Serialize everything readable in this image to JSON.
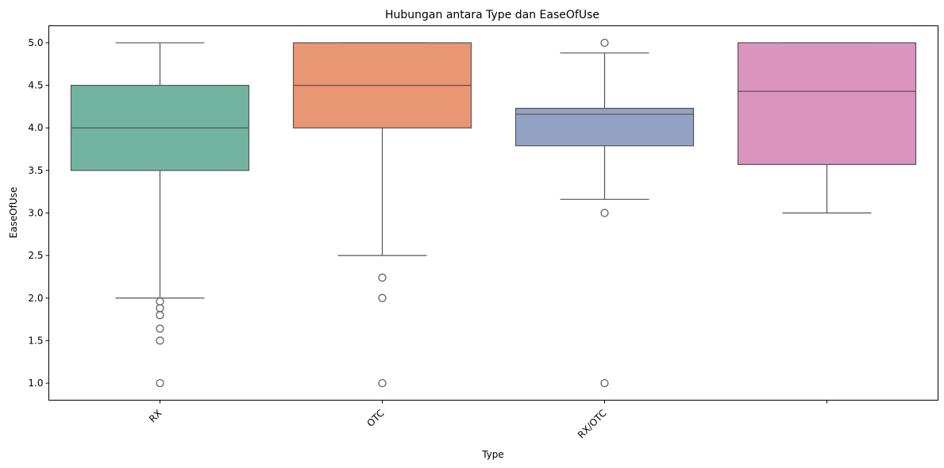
{
  "chart_data": {
    "type": "box",
    "title": "Hubungan antara Type dan EaseOfUse",
    "xlabel": "Type",
    "ylabel": "EaseOfUse",
    "ylim": [
      0.8,
      5.2
    ],
    "yticks": [
      1.0,
      1.5,
      2.0,
      2.5,
      3.0,
      3.5,
      4.0,
      4.5,
      5.0
    ],
    "ytick_labels": [
      "1.0",
      "1.5",
      "2.0",
      "2.5",
      "3.0",
      "3.5",
      "4.0",
      "4.5",
      "5.0"
    ],
    "categories": [
      "RX",
      "OTC",
      "RX/OTC",
      ""
    ],
    "grid": false,
    "boxes": [
      {
        "category": "RX",
        "whislo": 2.0,
        "q1": 3.5,
        "med": 4.0,
        "q3": 4.5,
        "whishi": 5.0,
        "color": "#73b4a0",
        "fliers": [
          1.96,
          1.88,
          1.8,
          1.64,
          1.5,
          1.0
        ]
      },
      {
        "category": "OTC",
        "whislo": 2.5,
        "q1": 4.0,
        "med": 4.5,
        "q3": 5.0,
        "whishi": 5.0,
        "color": "#e89674",
        "fliers": [
          2.24,
          2.0,
          1.0
        ]
      },
      {
        "category": "RX/OTC",
        "whislo": 3.16,
        "q1": 3.79,
        "med": 4.16,
        "q3": 4.23,
        "whishi": 4.88,
        "color": "#94a3c3",
        "fliers": [
          5.0,
          3.0,
          1.0
        ]
      },
      {
        "category": "",
        "whislo": 3.0,
        "q1": 3.57,
        "med": 4.43,
        "q3": 5.0,
        "whishi": 5.0,
        "color": "#da94bf",
        "fliers": []
      }
    ]
  }
}
